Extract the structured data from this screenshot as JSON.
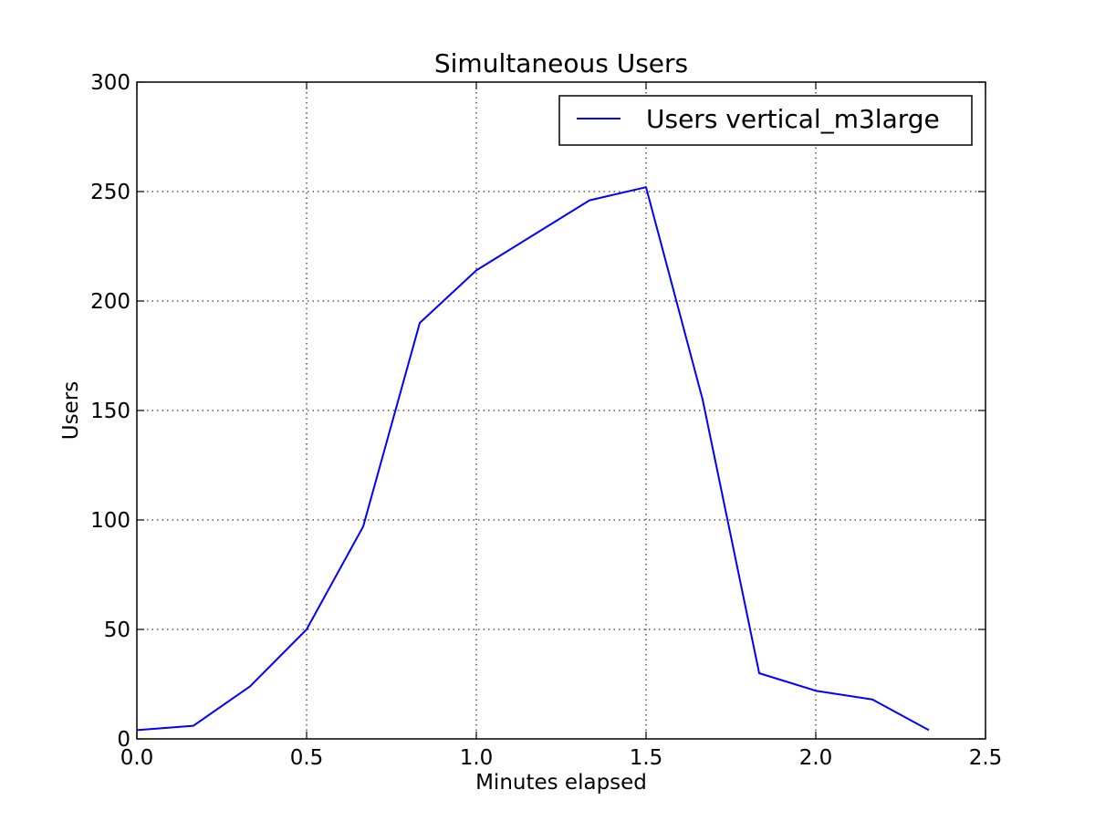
{
  "chart_data": {
    "type": "line",
    "title": "Simultaneous Users",
    "xlabel": "Minutes elapsed",
    "ylabel": "Users",
    "xlim": [
      0,
      2.5
    ],
    "ylim": [
      0,
      300
    ],
    "xticks": [
      0,
      0.5,
      1,
      1.5,
      2,
      2.5
    ],
    "xtick_labels": [
      "0.0",
      "0.5",
      "1.0",
      "1.5",
      "2.0",
      "2.5"
    ],
    "yticks": [
      0,
      50,
      100,
      150,
      200,
      250,
      300
    ],
    "ytick_labels": [
      "0",
      "50",
      "100",
      "150",
      "200",
      "250",
      "300"
    ],
    "grid": true,
    "legend_position": "top-right",
    "series": [
      {
        "name": "Users vertical_m3large",
        "color": "#0000ff",
        "x": [
          0,
          0.1667,
          0.3333,
          0.5,
          0.6667,
          0.8333,
          1.0,
          1.3333,
          1.5,
          1.6667,
          1.8333,
          2.0,
          2.1667,
          2.3333
        ],
        "y": [
          4,
          6,
          24,
          50,
          97,
          190,
          214,
          246,
          252,
          155,
          30,
          22,
          18,
          4
        ]
      }
    ]
  }
}
